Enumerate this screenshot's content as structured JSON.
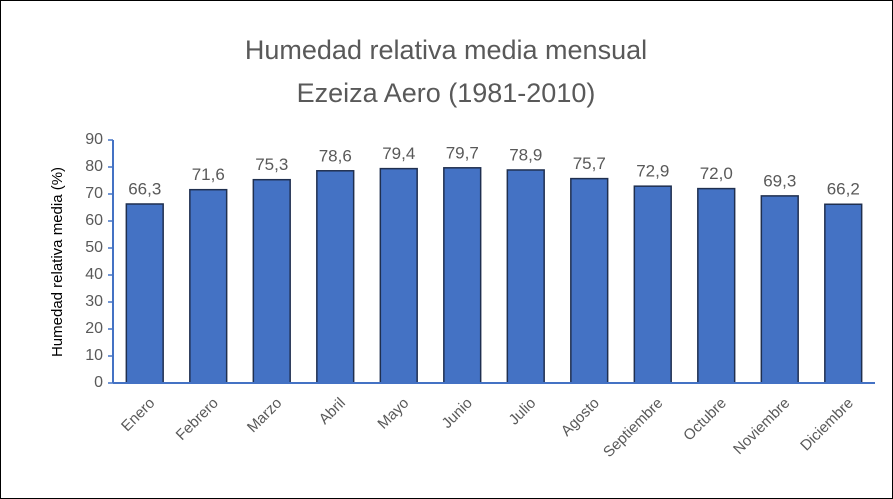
{
  "chart_data": {
    "type": "bar",
    "title": "Humedad relativa media mensual",
    "subtitle": "Ezeiza Aero (1981-2010)",
    "y_label": "Humedad relativa media (%)",
    "categories": [
      "Enero",
      "Febrero",
      "Marzo",
      "Abril",
      "Mayo",
      "Junio",
      "Julio",
      "Agosto",
      "Septiembre",
      "Octubre",
      "Noviembre",
      "Diciembre"
    ],
    "values": [
      66.3,
      71.6,
      75.3,
      78.6,
      79.4,
      79.7,
      78.9,
      75.7,
      72.9,
      72.0,
      69.3,
      66.2
    ],
    "value_labels": [
      "66,3",
      "71,6",
      "75,3",
      "78,6",
      "79,4",
      "79,7",
      "78,9",
      "75,7",
      "72,9",
      "72,0",
      "69,3",
      "66,2"
    ],
    "color": "#4472c4",
    "ylim": [
      0,
      90
    ],
    "yticks": [
      0,
      10,
      20,
      30,
      40,
      50,
      60,
      70,
      80,
      90
    ],
    "grid": false
  }
}
